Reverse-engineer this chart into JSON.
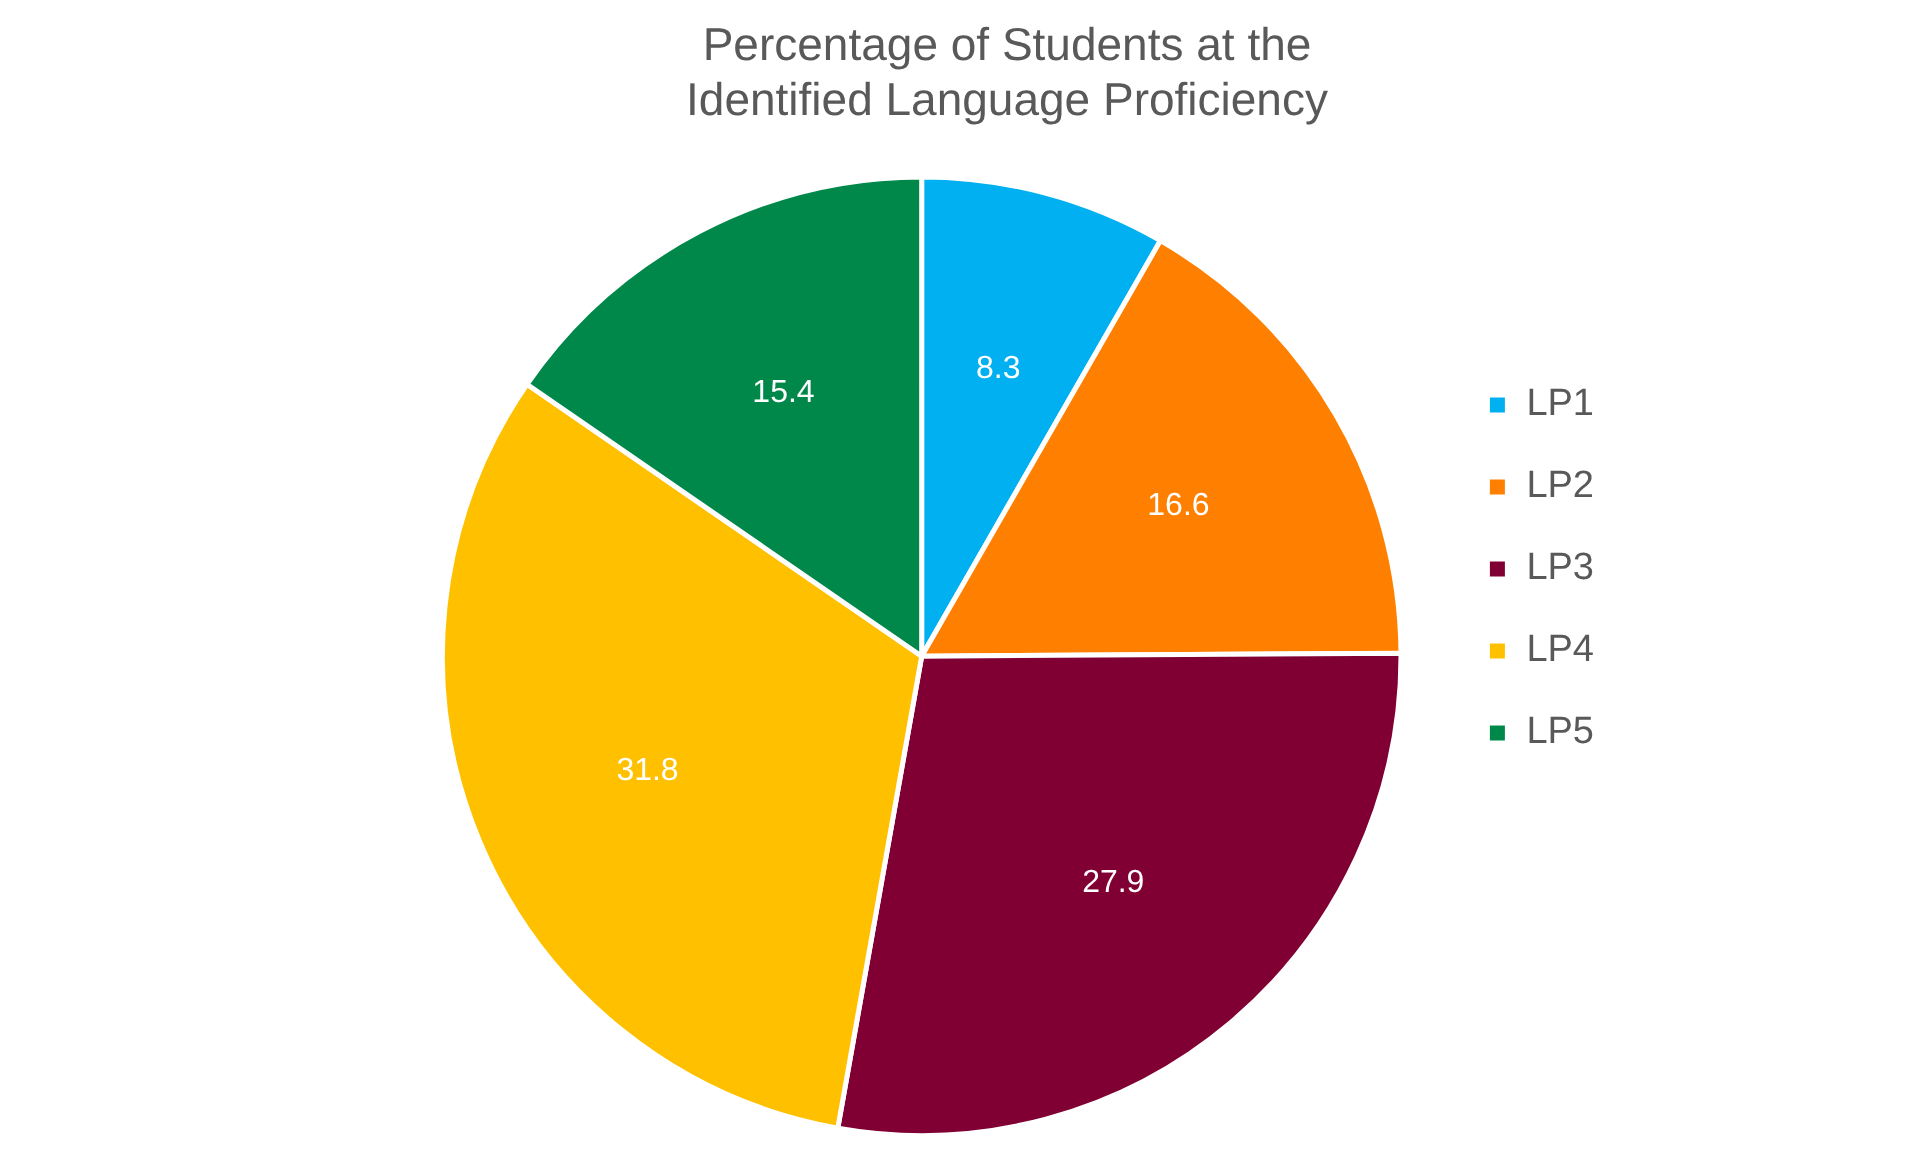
{
  "chart_data": {
    "type": "pie",
    "title": "Percentage of Students at the Identified Language Proficiency",
    "categories": [
      "LP1",
      "LP2",
      "LP3",
      "LP4",
      "LP5"
    ],
    "values": [
      8.3,
      16.6,
      27.9,
      31.8,
      15.4
    ],
    "colors": [
      "#00b0f0",
      "#ff8000",
      "#800033",
      "#ffc000",
      "#00884a"
    ],
    "data_labels": true,
    "legend": "right"
  }
}
